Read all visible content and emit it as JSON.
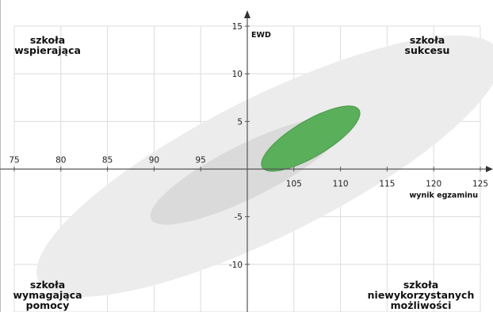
{
  "chart_data": {
    "type": "scatter",
    "xlabel": "wynik egzaminu",
    "ylabel": "EWD",
    "xlim": [
      75,
      125
    ],
    "ylim": [
      -15,
      15
    ],
    "x_ticks": [
      "75",
      "80",
      "85",
      "90",
      "95",
      "105",
      "110",
      "115",
      "120",
      "125"
    ],
    "y_ticks": [
      "15",
      "10",
      "5",
      "-5",
      "-10"
    ],
    "grid": true,
    "quadrant_labels": {
      "top_left": [
        "szkoła",
        "wspierająca"
      ],
      "top_right": [
        "szkoła",
        "sukcesu"
      ],
      "bottom_left": [
        "szkoła",
        "wymagająca",
        "pomocy"
      ],
      "bottom_right": [
        "szkoła",
        "niewykorzystanych",
        "możliwości"
      ]
    },
    "ellipses": [
      {
        "role": "outer-range",
        "center": [
          102.3,
          0.3
        ],
        "semi_major": 27.5,
        "semi_minor": 7.3,
        "angle_deg": 26,
        "color": "#ececec"
      },
      {
        "role": "inner-range",
        "center": [
          100,
          -0.2
        ],
        "semi_major": 11.5,
        "semi_minor": 2.8,
        "angle_deg": 26,
        "color": "#dadada"
      },
      {
        "role": "school",
        "center": [
          106.8,
          3.2
        ],
        "semi_major": 6.0,
        "semi_minor": 1.9,
        "angle_deg": 30,
        "color": "#5aaf5a"
      }
    ]
  }
}
